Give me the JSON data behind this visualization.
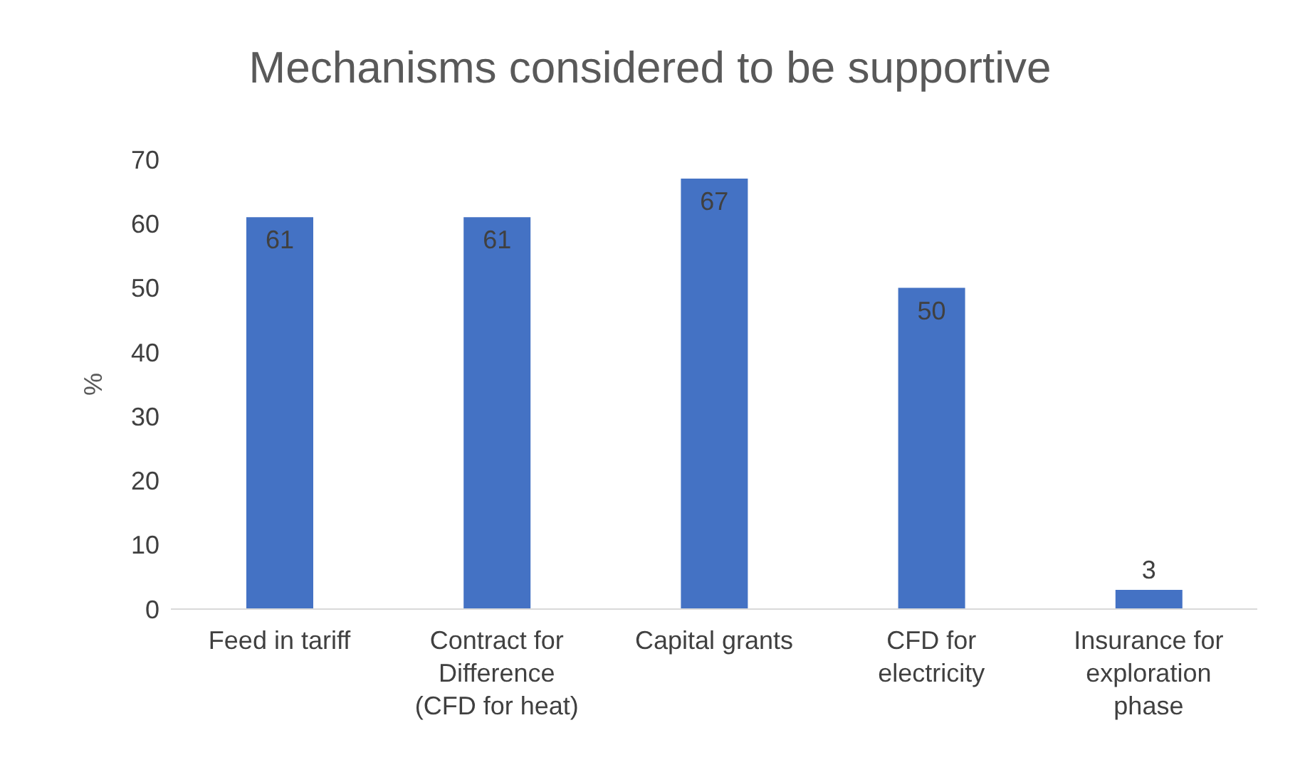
{
  "chart_data": {
    "type": "bar",
    "title": "Mechanisms considered to be supportive",
    "ylabel": "%",
    "categories": [
      "Feed in tariff",
      "Contract for Difference (CFD for heat)",
      "Capital grants",
      "CFD for electricity",
      "Insurance for exploration phase"
    ],
    "values": [
      61,
      61,
      67,
      50,
      3
    ],
    "color": "#4472c4",
    "ylim": [
      0,
      70
    ],
    "yticks": [
      0,
      10,
      20,
      30,
      40,
      50,
      60,
      70
    ],
    "grid": false,
    "data_labels": true
  }
}
